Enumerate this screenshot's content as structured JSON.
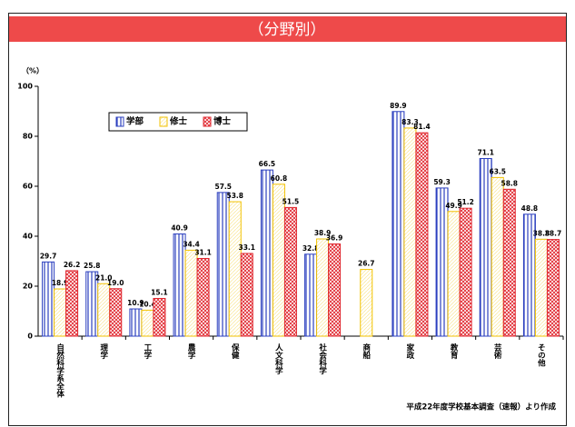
{
  "chart_data": {
    "type": "bar",
    "title": "（分野別）",
    "y_unit": "（%）",
    "categories": [
      "自然科学系全体",
      "理学",
      "工学",
      "農学",
      "保健",
      "人文科学",
      "社会科学",
      "商船",
      "家政",
      "教育",
      "芸術",
      "その他"
    ],
    "series": [
      {
        "name": "学部",
        "color": "#2b3fbf",
        "values": [
          29.7,
          25.8,
          10.9,
          40.9,
          57.5,
          66.5,
          32.8,
          null,
          89.9,
          59.3,
          71.1,
          48.8
        ],
        "value_labels": [
          "29.7",
          "25.8",
          "10.9",
          "40.9",
          "57.5",
          "66.5",
          "32.8",
          null,
          "89.9",
          "59.3",
          "71.1",
          "48.8"
        ]
      },
      {
        "name": "修士",
        "color": "#f2c200",
        "values": [
          18.9,
          21,
          10.4,
          34.4,
          53.8,
          60.8,
          38.9,
          26.7,
          83.3,
          49.9,
          63.5,
          38.8
        ],
        "value_labels": [
          "18.9",
          "21.0",
          "10.4",
          "34.4",
          "53.8",
          "60.8",
          "38.9",
          "26.7",
          "83.3",
          "49.9",
          "63.5",
          "38.8"
        ]
      },
      {
        "name": "博士",
        "color": "#e0262e",
        "values": [
          26.2,
          19,
          15.1,
          31.1,
          33.1,
          51.5,
          36.9,
          null,
          81.4,
          51.2,
          58.8,
          38.7
        ],
        "value_labels": [
          "26.2",
          "19.0",
          "15.1",
          "31.1",
          "33.1",
          "51.5",
          "36.9",
          null,
          "81.4",
          "51.2",
          "58.8",
          "38.7"
        ]
      }
    ],
    "ylim": [
      0,
      100
    ],
    "yticks": [
      0,
      20,
      40,
      60,
      80,
      100
    ],
    "source": "平成22年度学校基本調査（速報）より作成"
  }
}
